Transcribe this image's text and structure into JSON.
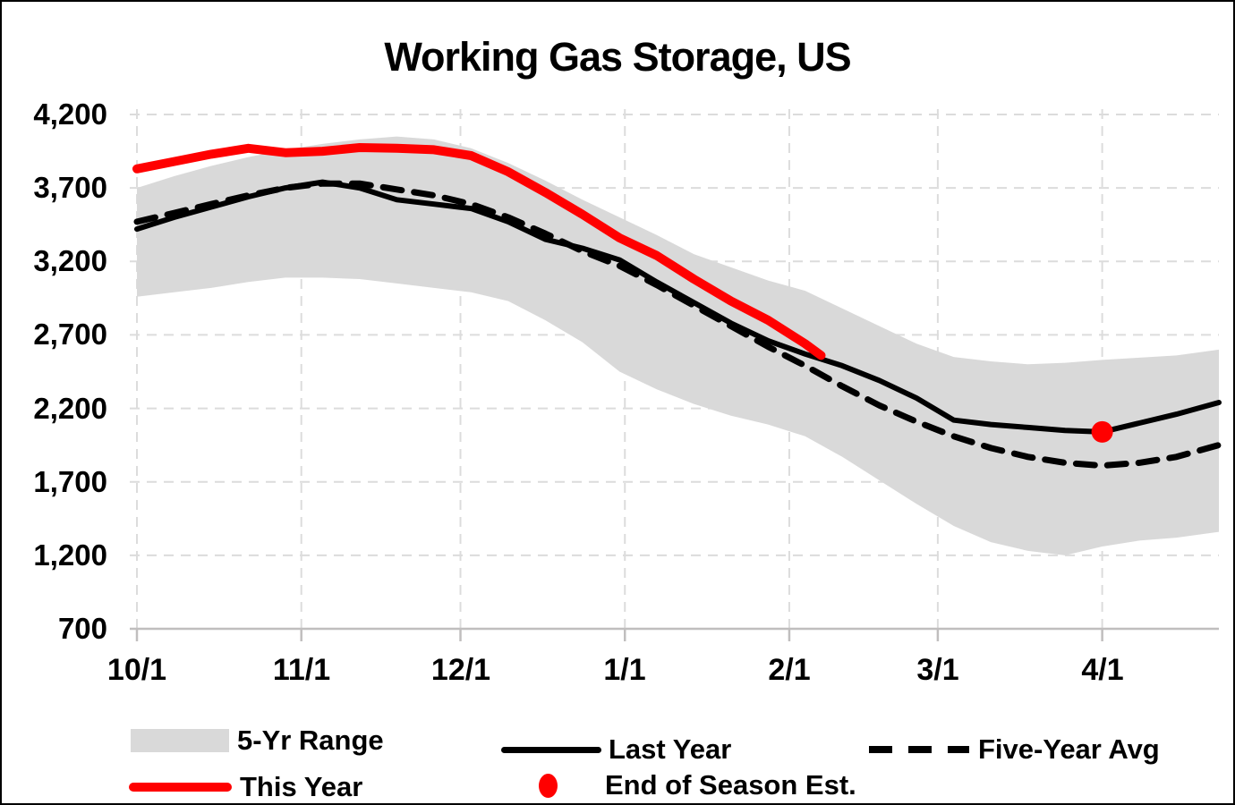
{
  "title": "Working Gas Storage, US",
  "colors": {
    "background": "#FFFFFF",
    "frame_border": "#000000",
    "text": "#000000",
    "gridline": "#DCDCDC",
    "axis_line": "#C0BEBE",
    "range_band": "#D9D9D9",
    "last_year_line": "#000000",
    "five_year_avg_line": "#000000",
    "this_year_line": "#FF0000",
    "end_of_season_dot": "#FF0000"
  },
  "legend": {
    "row1": [
      {
        "label": "5-Yr Range",
        "swatch": "gray-band"
      },
      {
        "label": "Last Year",
        "swatch": "black-solid-line"
      },
      {
        "label": "Five-Year Avg",
        "swatch": "black-dashed-line"
      }
    ],
    "row2": [
      {
        "label": "This Year",
        "swatch": "red-thick-line"
      },
      {
        "label": "End of Season Est.",
        "swatch": "red-dot"
      }
    ]
  },
  "chart_data": {
    "type": "line",
    "title": "Working Gas Storage, US",
    "grid": "dashed-light",
    "legend_position": "bottom",
    "y_axis": {
      "min": 700,
      "max": 4200,
      "tick_interval": 500,
      "ticks": [
        700,
        1200,
        1700,
        2200,
        2700,
        3200,
        3700,
        4200
      ],
      "tick_labels": [
        "700",
        "1,200",
        "1,700",
        "2,200",
        "2,700",
        "3,200",
        "3,700",
        "4,200"
      ]
    },
    "x_axis": {
      "tick_labels": [
        "10/1",
        "11/1",
        "12/1",
        "1/1",
        "2/1",
        "3/1",
        "4/1"
      ],
      "tick_days": [
        0,
        31,
        61,
        92,
        123,
        151,
        182
      ],
      "domain_days": [
        0,
        204
      ],
      "note": "days measured from 10/1"
    },
    "series": [
      {
        "name": "5-Yr Range",
        "type": "band",
        "color": "#D9D9D9",
        "x_days": [
          0,
          7,
          14,
          21,
          28,
          35,
          42,
          49,
          56,
          63,
          70,
          77,
          84,
          91,
          98,
          105,
          112,
          119,
          126,
          133,
          140,
          147,
          154,
          161,
          168,
          175,
          182,
          189,
          196,
          204
        ],
        "upper": [
          3700,
          3780,
          3850,
          3910,
          3960,
          4000,
          4030,
          4050,
          4030,
          3970,
          3870,
          3750,
          3620,
          3500,
          3380,
          3250,
          3160,
          3070,
          3000,
          2880,
          2760,
          2640,
          2550,
          2520,
          2500,
          2510,
          2530,
          2545,
          2560,
          2600
        ],
        "lower": [
          2960,
          2990,
          3020,
          3060,
          3090,
          3090,
          3080,
          3050,
          3020,
          2990,
          2930,
          2800,
          2650,
          2450,
          2330,
          2230,
          2150,
          2090,
          2010,
          1870,
          1710,
          1550,
          1400,
          1290,
          1230,
          1200,
          1260,
          1300,
          1320,
          1360
        ]
      },
      {
        "name": "Last Year",
        "type": "line",
        "style": "solid",
        "color": "#000000",
        "width": 6,
        "x_days": [
          0,
          7,
          14,
          21,
          28,
          35,
          42,
          49,
          56,
          63,
          70,
          77,
          84,
          91,
          98,
          105,
          112,
          119,
          126,
          133,
          140,
          147,
          154,
          161,
          168,
          175,
          182,
          189,
          196,
          204
        ],
        "values": [
          3420,
          3500,
          3570,
          3640,
          3700,
          3740,
          3700,
          3620,
          3590,
          3560,
          3470,
          3350,
          3290,
          3210,
          3060,
          2920,
          2780,
          2660,
          2570,
          2490,
          2390,
          2270,
          2120,
          2090,
          2070,
          2050,
          2040,
          2100,
          2160,
          2240
        ]
      },
      {
        "name": "Five-Year Avg",
        "type": "line",
        "style": "dashed",
        "color": "#000000",
        "width": 7,
        "x_days": [
          0,
          7,
          14,
          21,
          28,
          35,
          42,
          49,
          56,
          63,
          70,
          77,
          84,
          91,
          98,
          105,
          112,
          119,
          126,
          133,
          140,
          147,
          154,
          161,
          168,
          175,
          182,
          189,
          196,
          204
        ],
        "values": [
          3470,
          3530,
          3590,
          3650,
          3700,
          3730,
          3730,
          3690,
          3650,
          3590,
          3500,
          3390,
          3270,
          3170,
          3040,
          2900,
          2760,
          2620,
          2490,
          2350,
          2220,
          2110,
          2010,
          1930,
          1870,
          1830,
          1810,
          1830,
          1870,
          1950
        ]
      },
      {
        "name": "This Year",
        "type": "line",
        "style": "solid",
        "color": "#FF0000",
        "width": 10,
        "x_days": [
          0,
          7,
          14,
          21,
          28,
          35,
          42,
          49,
          56,
          63,
          70,
          77,
          84,
          91,
          98,
          105,
          112,
          119,
          126,
          129
        ],
        "values": [
          3830,
          3880,
          3930,
          3970,
          3940,
          3950,
          3975,
          3970,
          3960,
          3920,
          3810,
          3670,
          3520,
          3360,
          3240,
          3080,
          2930,
          2800,
          2640,
          2560
        ]
      },
      {
        "name": "End of Season Est.",
        "type": "point",
        "color": "#FF0000",
        "x_day": 182,
        "date": "4/1",
        "value": 2040,
        "radius": 12
      }
    ]
  }
}
